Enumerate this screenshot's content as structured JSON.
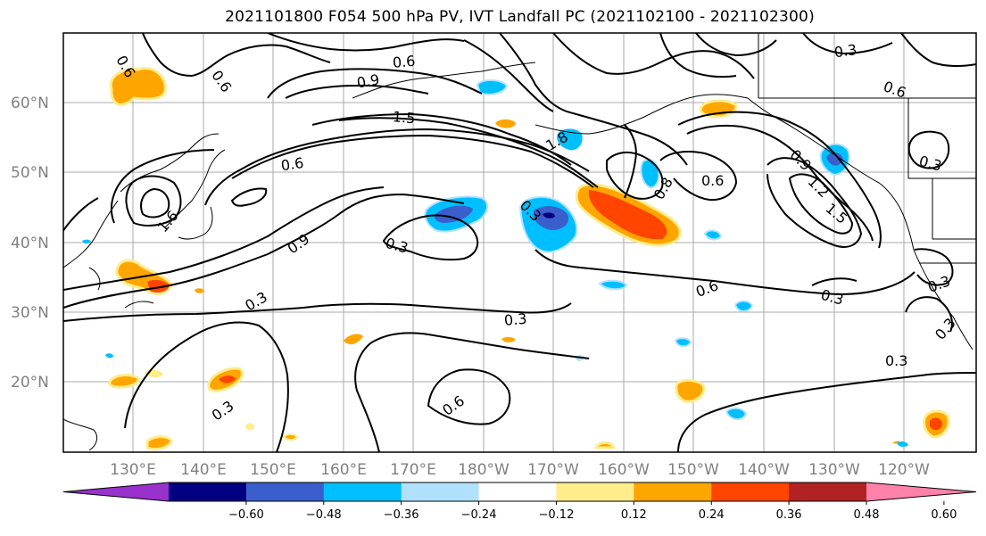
{
  "title": "2021101800 F054 500 hPa PV, IVT Landfall PC (2021102100 - 2021102300)",
  "lat_labels": [
    "60°N",
    "50°N",
    "40°N",
    "30°N",
    "20°N"
  ],
  "lon_labels": [
    "130°E",
    "140°E",
    "150°E",
    "160°E",
    "170°E",
    "180°W",
    "170°W",
    "160°W",
    "150°W",
    "140°W",
    "130°W",
    "120°W"
  ],
  "contour_labels": [
    "0.6",
    "0.6",
    "0.9",
    "1.5",
    "0.6",
    "0.9",
    "0.3",
    "0.3",
    "0.3",
    "0.6",
    "0.3",
    "0.6",
    "0.3",
    "1.8",
    "0.8",
    "0.6",
    "0.9",
    "1.2",
    "1.5",
    "0.3",
    "0.6",
    "0.3",
    "0.3",
    "0.3",
    "0.3",
    "0.3",
    "1.6",
    "0.6"
  ],
  "colorbar": {
    "tick_labels": [
      "−0.60",
      "−0.48",
      "−0.36",
      "−0.24",
      "−0.12",
      "0.12",
      "0.24",
      "0.36",
      "0.48",
      "0.60"
    ],
    "colors": [
      "#9932cc",
      "#000080",
      "#3a5fcd",
      "#00bfff",
      "#b0e2ff",
      "#ffffff",
      "#ffec8b",
      "#ffa500",
      "#ff4500",
      "#b22222",
      "#ff82ab"
    ]
  },
  "map_colors": {
    "land_line": "#000000",
    "grid": "#a9a9a9",
    "contour": "#000000"
  }
}
